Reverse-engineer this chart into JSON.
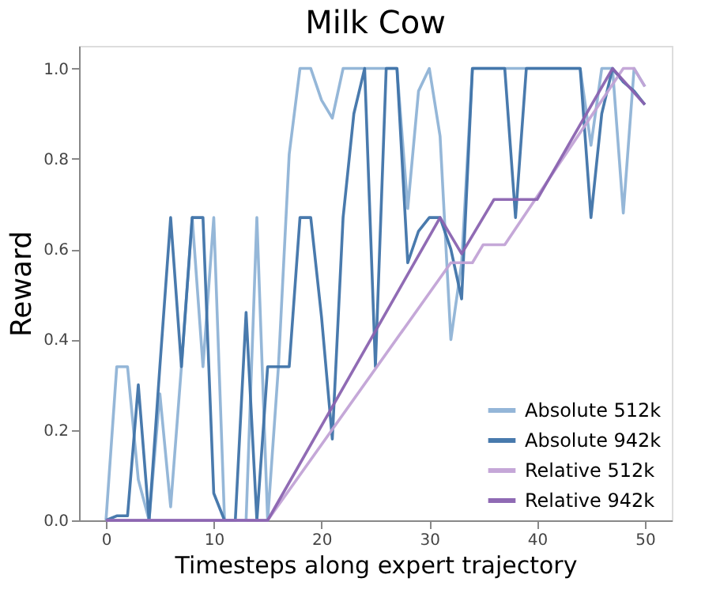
{
  "chart_data": {
    "type": "line",
    "title": "Milk Cow",
    "xlabel": "Timesteps along expert trajectory",
    "ylabel": "Reward",
    "xlim": [
      -2.5,
      52.5
    ],
    "xticks": [
      0,
      10,
      20,
      30,
      40,
      50
    ],
    "ylim": [
      0,
      1.05
    ],
    "yticks": [
      {
        "value": 0,
        "label": "0.0"
      },
      {
        "value": 0.2,
        "label": "0.2"
      },
      {
        "value": 0.4,
        "label": "0.4"
      },
      {
        "value": 0.6,
        "label": "0.6"
      },
      {
        "value": 0.8,
        "label": "0.8"
      },
      {
        "value": 1,
        "label": "1.0"
      }
    ],
    "grid": false,
    "legend": "bottom right",
    "marker": "none",
    "line_style": "solid",
    "series": [
      {
        "name": "Absolute 512k",
        "color": "#8fb3d6",
        "x": [
          0,
          1,
          2,
          3,
          4,
          5,
          6,
          7,
          8,
          9,
          10,
          11,
          12,
          13,
          14,
          15,
          16,
          17,
          18,
          19,
          20,
          21,
          22,
          23,
          24,
          25,
          26,
          27,
          28,
          29,
          30,
          31,
          32,
          33,
          34,
          35,
          36,
          37,
          38,
          39,
          40,
          41,
          42,
          43,
          44,
          45,
          46,
          47,
          48,
          49,
          50
        ],
        "values": [
          0,
          0.34,
          0.34,
          0.09,
          0,
          0.28,
          0.03,
          0.34,
          0.67,
          0.34,
          0.67,
          0,
          0,
          0,
          0.67,
          0,
          0.34,
          0.81,
          1,
          1,
          0.93,
          0.89,
          1,
          1,
          1,
          1,
          1,
          1,
          0.69,
          0.95,
          1,
          0.85,
          0.4,
          0.57,
          1,
          1,
          1,
          1,
          1,
          1,
          1,
          1,
          1,
          1,
          1,
          0.83,
          1,
          1,
          0.68,
          1,
          0.96
        ]
      },
      {
        "name": "Absolute 942k",
        "color": "#3f73a9",
        "x": [
          0,
          1,
          2,
          3,
          4,
          5,
          6,
          7,
          8,
          9,
          10,
          11,
          12,
          13,
          14,
          15,
          16,
          17,
          18,
          19,
          20,
          21,
          22,
          23,
          24,
          25,
          26,
          27,
          28,
          29,
          30,
          31,
          32,
          33,
          34,
          35,
          36,
          37,
          38,
          39,
          40,
          41,
          42,
          43,
          44,
          45,
          46,
          47,
          48,
          49,
          50
        ],
        "values": [
          0,
          0.01,
          0.01,
          0.3,
          0,
          0.34,
          0.67,
          0.34,
          0.67,
          0.67,
          0.06,
          0,
          0,
          0.46,
          0,
          0.34,
          0.34,
          0.34,
          0.67,
          0.67,
          0.45,
          0.18,
          0.67,
          0.9,
          1,
          0.34,
          1,
          1,
          0.57,
          0.64,
          0.67,
          0.67,
          0.6,
          0.49,
          1,
          1,
          1,
          1,
          0.67,
          1,
          1,
          1,
          1,
          1,
          1,
          0.67,
          0.9,
          1,
          0.97,
          0.95,
          0.92
        ]
      },
      {
        "name": "Relative 512k",
        "color": "#c2a3d6",
        "x": [
          0,
          15,
          32,
          34,
          35,
          37,
          48,
          49,
          50
        ],
        "values": [
          0,
          0,
          0.57,
          0.57,
          0.61,
          0.61,
          1,
          1,
          0.96
        ]
      },
      {
        "name": "Relative 942k",
        "color": "#8a63b0",
        "x": [
          0,
          15,
          31,
          33,
          36,
          40,
          47,
          50
        ],
        "values": [
          0,
          0,
          0.67,
          0.59,
          0.71,
          0.71,
          1,
          0.92
        ]
      }
    ]
  }
}
